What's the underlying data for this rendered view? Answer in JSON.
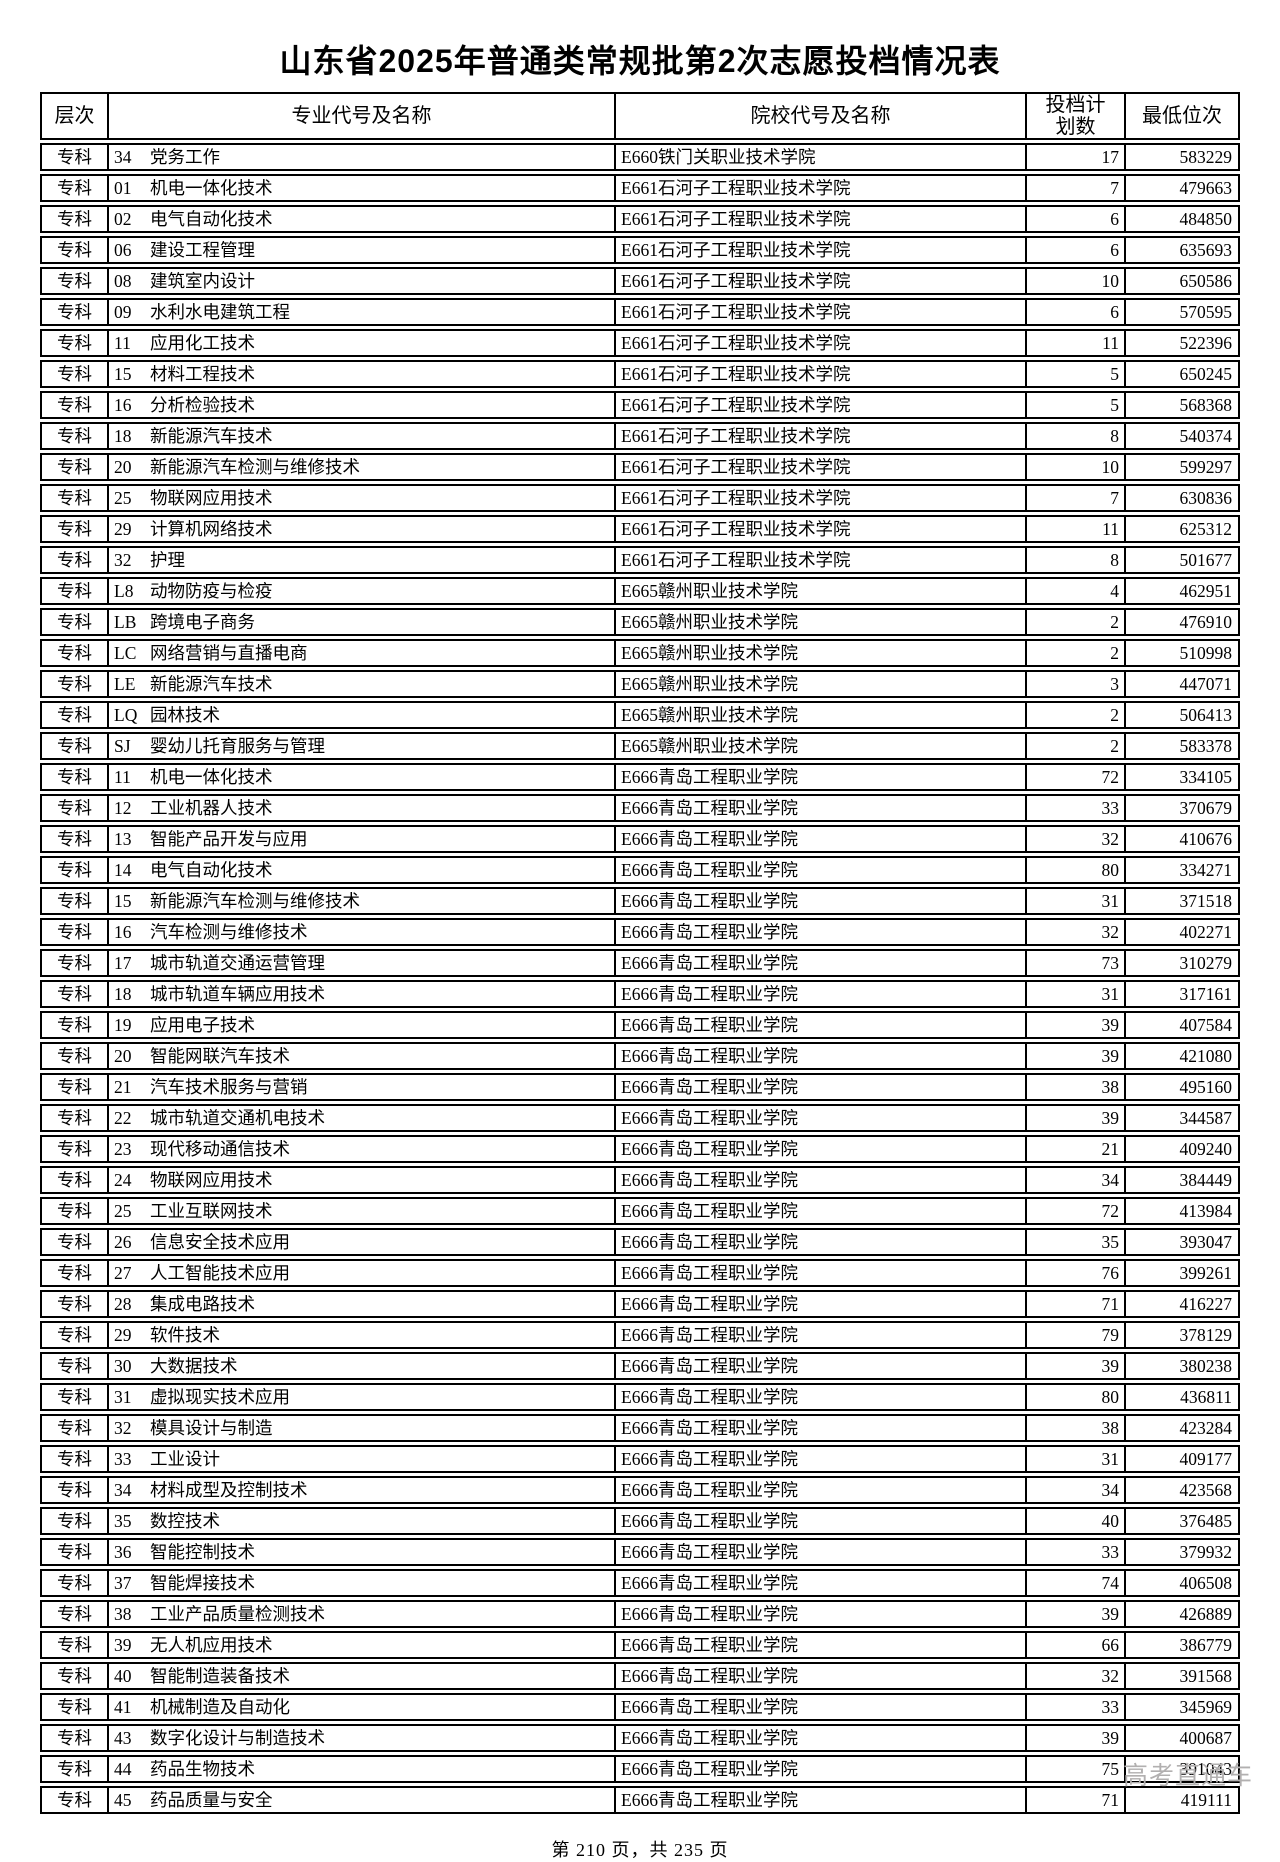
{
  "page": {
    "title": "山东省2025年普通类常规批第2次志愿投档情况表",
    "footer": "第 210 页，共 235 页",
    "watermark": "高考直通车"
  },
  "colors": {
    "text": "#000000",
    "border": "#000000",
    "watermark": "#b2b0b0"
  },
  "table": {
    "headers": [
      "层次",
      "专业代号及名称",
      "院校代号及名称",
      "投档计划数",
      "最低位次"
    ],
    "rows": [
      {
        "level": "专科",
        "major_code": "34",
        "major_name": "党务工作",
        "college": "E660铁门关职业技术学院",
        "plan": "17",
        "rank": "583229"
      },
      {
        "level": "专科",
        "major_code": "01",
        "major_name": "机电一体化技术",
        "college": "E661石河子工程职业技术学院",
        "plan": "7",
        "rank": "479663"
      },
      {
        "level": "专科",
        "major_code": "02",
        "major_name": "电气自动化技术",
        "college": "E661石河子工程职业技术学院",
        "plan": "6",
        "rank": "484850"
      },
      {
        "level": "专科",
        "major_code": "06",
        "major_name": "建设工程管理",
        "college": "E661石河子工程职业技术学院",
        "plan": "6",
        "rank": "635693"
      },
      {
        "level": "专科",
        "major_code": "08",
        "major_name": "建筑室内设计",
        "college": "E661石河子工程职业技术学院",
        "plan": "10",
        "rank": "650586"
      },
      {
        "level": "专科",
        "major_code": "09",
        "major_name": "水利水电建筑工程",
        "college": "E661石河子工程职业技术学院",
        "plan": "6",
        "rank": "570595"
      },
      {
        "level": "专科",
        "major_code": "11",
        "major_name": "应用化工技术",
        "college": "E661石河子工程职业技术学院",
        "plan": "11",
        "rank": "522396"
      },
      {
        "level": "专科",
        "major_code": "15",
        "major_name": "材料工程技术",
        "college": "E661石河子工程职业技术学院",
        "plan": "5",
        "rank": "650245"
      },
      {
        "level": "专科",
        "major_code": "16",
        "major_name": "分析检验技术",
        "college": "E661石河子工程职业技术学院",
        "plan": "5",
        "rank": "568368"
      },
      {
        "level": "专科",
        "major_code": "18",
        "major_name": "新能源汽车技术",
        "college": "E661石河子工程职业技术学院",
        "plan": "8",
        "rank": "540374"
      },
      {
        "level": "专科",
        "major_code": "20",
        "major_name": "新能源汽车检测与维修技术",
        "college": "E661石河子工程职业技术学院",
        "plan": "10",
        "rank": "599297"
      },
      {
        "level": "专科",
        "major_code": "25",
        "major_name": "物联网应用技术",
        "college": "E661石河子工程职业技术学院",
        "plan": "7",
        "rank": "630836"
      },
      {
        "level": "专科",
        "major_code": "29",
        "major_name": "计算机网络技术",
        "college": "E661石河子工程职业技术学院",
        "plan": "11",
        "rank": "625312"
      },
      {
        "level": "专科",
        "major_code": "32",
        "major_name": "护理",
        "college": "E661石河子工程职业技术学院",
        "plan": "8",
        "rank": "501677"
      },
      {
        "level": "专科",
        "major_code": "L8",
        "major_name": "动物防疫与检疫",
        "college": "E665赣州职业技术学院",
        "plan": "4",
        "rank": "462951"
      },
      {
        "level": "专科",
        "major_code": "LB",
        "major_name": "跨境电子商务",
        "college": "E665赣州职业技术学院",
        "plan": "2",
        "rank": "476910"
      },
      {
        "level": "专科",
        "major_code": "LC",
        "major_name": "网络营销与直播电商",
        "college": "E665赣州职业技术学院",
        "plan": "2",
        "rank": "510998"
      },
      {
        "level": "专科",
        "major_code": "LE",
        "major_name": "新能源汽车技术",
        "college": "E665赣州职业技术学院",
        "plan": "3",
        "rank": "447071"
      },
      {
        "level": "专科",
        "major_code": "LQ",
        "major_name": "园林技术",
        "college": "E665赣州职业技术学院",
        "plan": "2",
        "rank": "506413"
      },
      {
        "level": "专科",
        "major_code": "SJ",
        "major_name": "婴幼儿托育服务与管理",
        "college": "E665赣州职业技术学院",
        "plan": "2",
        "rank": "583378"
      },
      {
        "level": "专科",
        "major_code": "11",
        "major_name": "机电一体化技术",
        "college": "E666青岛工程职业学院",
        "plan": "72",
        "rank": "334105"
      },
      {
        "level": "专科",
        "major_code": "12",
        "major_name": "工业机器人技术",
        "college": "E666青岛工程职业学院",
        "plan": "33",
        "rank": "370679"
      },
      {
        "level": "专科",
        "major_code": "13",
        "major_name": "智能产品开发与应用",
        "college": "E666青岛工程职业学院",
        "plan": "32",
        "rank": "410676"
      },
      {
        "level": "专科",
        "major_code": "14",
        "major_name": "电气自动化技术",
        "college": "E666青岛工程职业学院",
        "plan": "80",
        "rank": "334271"
      },
      {
        "level": "专科",
        "major_code": "15",
        "major_name": "新能源汽车检测与维修技术",
        "college": "E666青岛工程职业学院",
        "plan": "31",
        "rank": "371518"
      },
      {
        "level": "专科",
        "major_code": "16",
        "major_name": "汽车检测与维修技术",
        "college": "E666青岛工程职业学院",
        "plan": "32",
        "rank": "402271"
      },
      {
        "level": "专科",
        "major_code": "17",
        "major_name": "城市轨道交通运营管理",
        "college": "E666青岛工程职业学院",
        "plan": "73",
        "rank": "310279"
      },
      {
        "level": "专科",
        "major_code": "18",
        "major_name": "城市轨道车辆应用技术",
        "college": "E666青岛工程职业学院",
        "plan": "31",
        "rank": "317161"
      },
      {
        "level": "专科",
        "major_code": "19",
        "major_name": "应用电子技术",
        "college": "E666青岛工程职业学院",
        "plan": "39",
        "rank": "407584"
      },
      {
        "level": "专科",
        "major_code": "20",
        "major_name": "智能网联汽车技术",
        "college": "E666青岛工程职业学院",
        "plan": "39",
        "rank": "421080"
      },
      {
        "level": "专科",
        "major_code": "21",
        "major_name": "汽车技术服务与营销",
        "college": "E666青岛工程职业学院",
        "plan": "38",
        "rank": "495160"
      },
      {
        "level": "专科",
        "major_code": "22",
        "major_name": "城市轨道交通机电技术",
        "college": "E666青岛工程职业学院",
        "plan": "39",
        "rank": "344587"
      },
      {
        "level": "专科",
        "major_code": "23",
        "major_name": "现代移动通信技术",
        "college": "E666青岛工程职业学院",
        "plan": "21",
        "rank": "409240"
      },
      {
        "level": "专科",
        "major_code": "24",
        "major_name": "物联网应用技术",
        "college": "E666青岛工程职业学院",
        "plan": "34",
        "rank": "384449"
      },
      {
        "level": "专科",
        "major_code": "25",
        "major_name": "工业互联网技术",
        "college": "E666青岛工程职业学院",
        "plan": "72",
        "rank": "413984"
      },
      {
        "level": "专科",
        "major_code": "26",
        "major_name": "信息安全技术应用",
        "college": "E666青岛工程职业学院",
        "plan": "35",
        "rank": "393047"
      },
      {
        "level": "专科",
        "major_code": "27",
        "major_name": "人工智能技术应用",
        "college": "E666青岛工程职业学院",
        "plan": "76",
        "rank": "399261"
      },
      {
        "level": "专科",
        "major_code": "28",
        "major_name": "集成电路技术",
        "college": "E666青岛工程职业学院",
        "plan": "71",
        "rank": "416227"
      },
      {
        "level": "专科",
        "major_code": "29",
        "major_name": "软件技术",
        "college": "E666青岛工程职业学院",
        "plan": "79",
        "rank": "378129"
      },
      {
        "level": "专科",
        "major_code": "30",
        "major_name": "大数据技术",
        "college": "E666青岛工程职业学院",
        "plan": "39",
        "rank": "380238"
      },
      {
        "level": "专科",
        "major_code": "31",
        "major_name": "虚拟现实技术应用",
        "college": "E666青岛工程职业学院",
        "plan": "80",
        "rank": "436811"
      },
      {
        "level": "专科",
        "major_code": "32",
        "major_name": "模具设计与制造",
        "college": "E666青岛工程职业学院",
        "plan": "38",
        "rank": "423284"
      },
      {
        "level": "专科",
        "major_code": "33",
        "major_name": "工业设计",
        "college": "E666青岛工程职业学院",
        "plan": "31",
        "rank": "409177"
      },
      {
        "level": "专科",
        "major_code": "34",
        "major_name": "材料成型及控制技术",
        "college": "E666青岛工程职业学院",
        "plan": "34",
        "rank": "423568"
      },
      {
        "level": "专科",
        "major_code": "35",
        "major_name": "数控技术",
        "college": "E666青岛工程职业学院",
        "plan": "40",
        "rank": "376485"
      },
      {
        "level": "专科",
        "major_code": "36",
        "major_name": "智能控制技术",
        "college": "E666青岛工程职业学院",
        "plan": "33",
        "rank": "379932"
      },
      {
        "level": "专科",
        "major_code": "37",
        "major_name": "智能焊接技术",
        "college": "E666青岛工程职业学院",
        "plan": "74",
        "rank": "406508"
      },
      {
        "level": "专科",
        "major_code": "38",
        "major_name": "工业产品质量检测技术",
        "college": "E666青岛工程职业学院",
        "plan": "39",
        "rank": "426889"
      },
      {
        "level": "专科",
        "major_code": "39",
        "major_name": "无人机应用技术",
        "college": "E666青岛工程职业学院",
        "plan": "66",
        "rank": "386779"
      },
      {
        "level": "专科",
        "major_code": "40",
        "major_name": "智能制造装备技术",
        "college": "E666青岛工程职业学院",
        "plan": "32",
        "rank": "391568"
      },
      {
        "level": "专科",
        "major_code": "41",
        "major_name": "机械制造及自动化",
        "college": "E666青岛工程职业学院",
        "plan": "33",
        "rank": "345969"
      },
      {
        "level": "专科",
        "major_code": "43",
        "major_name": "数字化设计与制造技术",
        "college": "E666青岛工程职业学院",
        "plan": "39",
        "rank": "400687"
      },
      {
        "level": "专科",
        "major_code": "44",
        "major_name": "药品生物技术",
        "college": "E666青岛工程职业学院",
        "plan": "75",
        "rank": "391043"
      },
      {
        "level": "专科",
        "major_code": "45",
        "major_name": "药品质量与安全",
        "college": "E666青岛工程职业学院",
        "plan": "71",
        "rank": "419111"
      }
    ]
  }
}
